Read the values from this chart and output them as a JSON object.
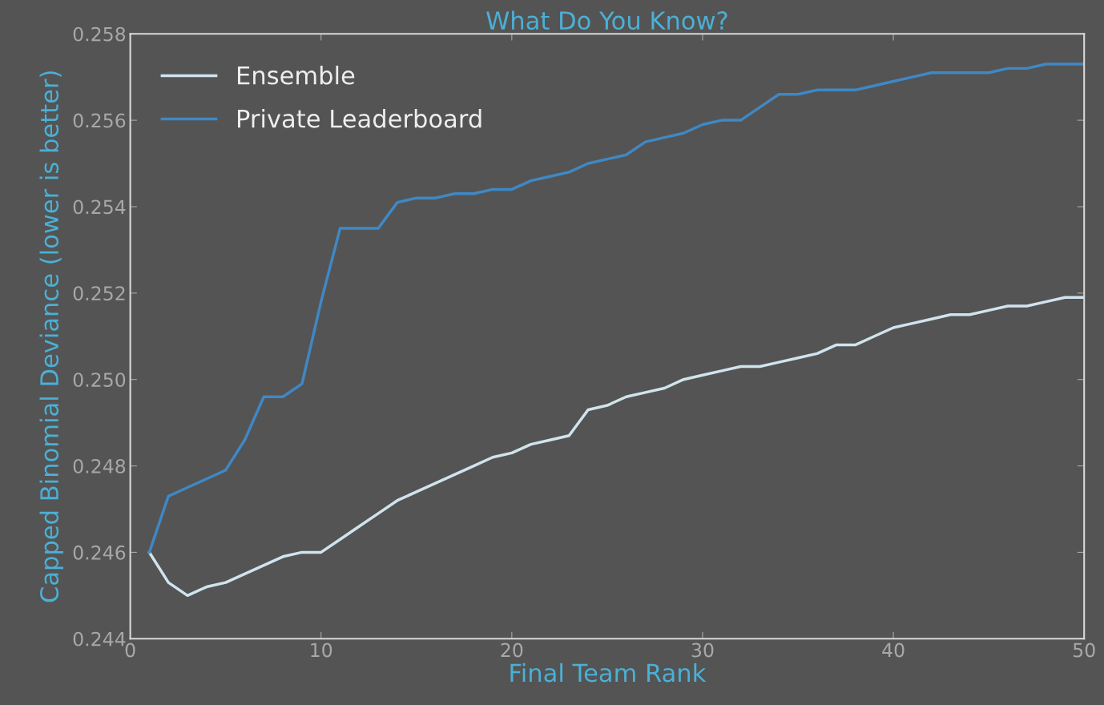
{
  "chart_data": {
    "type": "line",
    "title": "What Do You Know?",
    "xlabel": "Final Team Rank",
    "ylabel": "Capped Binomial Deviance (lower is better)",
    "x": [
      1,
      2,
      3,
      4,
      5,
      6,
      7,
      8,
      9,
      10,
      11,
      12,
      13,
      14,
      15,
      16,
      17,
      18,
      19,
      20,
      21,
      22,
      23,
      24,
      25,
      26,
      27,
      28,
      29,
      30,
      31,
      32,
      33,
      34,
      35,
      36,
      37,
      38,
      39,
      40,
      41,
      42,
      43,
      44,
      45,
      46,
      47,
      48,
      49,
      50
    ],
    "series": [
      {
        "name": "Ensemble",
        "color": "#d0e4ee",
        "values": [
          0.246,
          0.2453,
          0.245,
          0.2452,
          0.2453,
          0.2455,
          0.2457,
          0.2459,
          0.246,
          0.246,
          0.2463,
          0.2466,
          0.2469,
          0.2472,
          0.2474,
          0.2476,
          0.2478,
          0.248,
          0.2482,
          0.2483,
          0.2485,
          0.2486,
          0.2487,
          0.2493,
          0.2494,
          0.2496,
          0.2497,
          0.2498,
          0.25,
          0.2501,
          0.2502,
          0.2503,
          0.2503,
          0.2504,
          0.2505,
          0.2506,
          0.2508,
          0.2508,
          0.251,
          0.2512,
          0.2513,
          0.2514,
          0.2515,
          0.2515,
          0.2516,
          0.2517,
          0.2517,
          0.2518,
          0.2519,
          0.2519
        ]
      },
      {
        "name": "Private Leaderboard",
        "color": "#3f88c5",
        "values": [
          0.246,
          0.2473,
          0.2475,
          0.2477,
          0.2479,
          0.2486,
          0.2496,
          0.2496,
          0.2499,
          0.2518,
          0.2535,
          0.2535,
          0.2535,
          0.2541,
          0.2542,
          0.2542,
          0.2543,
          0.2543,
          0.2544,
          0.2544,
          0.2546,
          0.2547,
          0.2548,
          0.255,
          0.2551,
          0.2552,
          0.2555,
          0.2556,
          0.2557,
          0.2559,
          0.256,
          0.256,
          0.2563,
          0.2566,
          0.2566,
          0.2567,
          0.2567,
          0.2567,
          0.2568,
          0.2569,
          0.257,
          0.2571,
          0.2571,
          0.2571,
          0.2571,
          0.2572,
          0.2572,
          0.2573,
          0.2573,
          0.2573
        ]
      }
    ],
    "xlim": [
      0,
      50
    ],
    "xticks": [
      0,
      10,
      20,
      30,
      40,
      50
    ],
    "ylim": [
      0.244,
      0.258
    ],
    "yticks": [
      0.244,
      0.246,
      0.248,
      {
        "value": 0.25,
        "label": "0.250"
      },
      0.252,
      0.254,
      0.256,
      0.258
    ],
    "grid": false,
    "legend": "top left",
    "marker": "none",
    "line_style": "solid"
  }
}
